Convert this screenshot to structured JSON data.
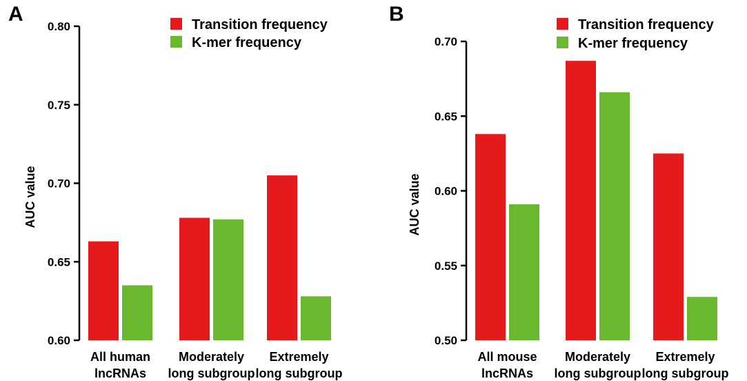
{
  "chart_data": [
    {
      "panel": "A",
      "type": "bar",
      "ylabel": "AUC value",
      "ylim": [
        0.6,
        0.8
      ],
      "yticks": [
        "0.60",
        "0.65",
        "0.70",
        "0.75",
        "0.80"
      ],
      "categories": [
        [
          "All human",
          "lncRNAs"
        ],
        [
          "Moderately",
          "long subgroup"
        ],
        [
          "Extremely",
          "long subgroup"
        ]
      ],
      "series": [
        {
          "name": "Transition frequency",
          "color": "#e41a1c",
          "values": [
            0.663,
            0.678,
            0.705
          ]
        },
        {
          "name": "K-mer frequency",
          "color": "#6ab82d",
          "values": [
            0.635,
            0.677,
            0.628
          ]
        }
      ],
      "legend": "top-right"
    },
    {
      "panel": "B",
      "type": "bar",
      "ylabel": "AUC value",
      "ylim": [
        0.5,
        0.7
      ],
      "yticks": [
        "0.50",
        "0.55",
        "0.60",
        "0.65",
        "0.70"
      ],
      "categories": [
        [
          "All mouse",
          "lncRNAs"
        ],
        [
          "Moderately",
          "long subgroup"
        ],
        [
          "Extremely",
          "long subgroup"
        ]
      ],
      "series": [
        {
          "name": "Transition frequency",
          "color": "#e41a1c",
          "values": [
            0.638,
            0.687,
            0.625
          ]
        },
        {
          "name": "K-mer frequency",
          "color": "#6ab82d",
          "values": [
            0.591,
            0.666,
            0.529
          ]
        }
      ],
      "legend": "top-right"
    }
  ]
}
